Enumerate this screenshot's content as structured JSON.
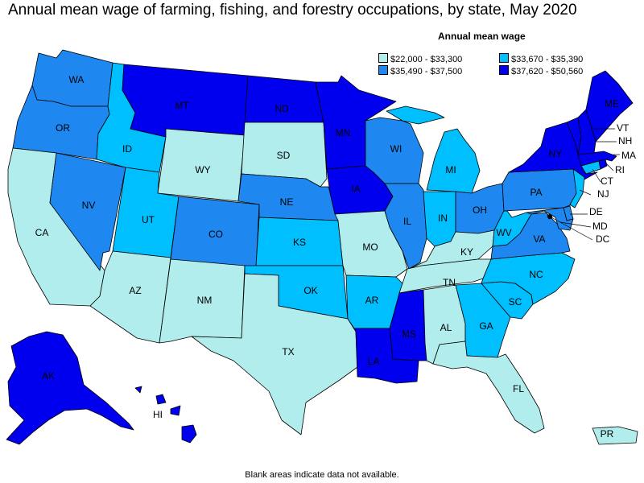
{
  "title": "Annual mean wage of farming, fishing, and forestry occupations, by state, May 2020",
  "legend": {
    "title": "Annual mean wage",
    "items": [
      {
        "label": "$22,000 - $33,300",
        "color": "#b2eded"
      },
      {
        "label": "$33,670 - $35,390",
        "color": "#00bfff"
      },
      {
        "label": "$35,490 - $37,500",
        "color": "#1e88f0"
      },
      {
        "label": "$37,620 - $50,560",
        "color": "#0000ee"
      }
    ]
  },
  "footnote": "Blank areas indicate data not available.",
  "states": [
    {
      "abbr": "WA",
      "bin": 2
    },
    {
      "abbr": "OR",
      "bin": 2
    },
    {
      "abbr": "CA",
      "bin": 0
    },
    {
      "abbr": "NV",
      "bin": 2
    },
    {
      "abbr": "ID",
      "bin": 1
    },
    {
      "abbr": "MT",
      "bin": 3
    },
    {
      "abbr": "WY",
      "bin": 0
    },
    {
      "abbr": "UT",
      "bin": 1
    },
    {
      "abbr": "AZ",
      "bin": 0
    },
    {
      "abbr": "CO",
      "bin": 2
    },
    {
      "abbr": "NM",
      "bin": 0
    },
    {
      "abbr": "ND",
      "bin": 3
    },
    {
      "abbr": "SD",
      "bin": 0
    },
    {
      "abbr": "NE",
      "bin": 2
    },
    {
      "abbr": "KS",
      "bin": 1
    },
    {
      "abbr": "OK",
      "bin": 1
    },
    {
      "abbr": "TX",
      "bin": 0
    },
    {
      "abbr": "MN",
      "bin": 3
    },
    {
      "abbr": "IA",
      "bin": 3
    },
    {
      "abbr": "MO",
      "bin": 0
    },
    {
      "abbr": "AR",
      "bin": 1
    },
    {
      "abbr": "LA",
      "bin": 3
    },
    {
      "abbr": "WI",
      "bin": 2
    },
    {
      "abbr": "IL",
      "bin": 2
    },
    {
      "abbr": "MI",
      "bin": 1
    },
    {
      "abbr": "IN",
      "bin": 1
    },
    {
      "abbr": "OH",
      "bin": 2
    },
    {
      "abbr": "KY",
      "bin": 0
    },
    {
      "abbr": "TN",
      "bin": 0
    },
    {
      "abbr": "MS",
      "bin": 3
    },
    {
      "abbr": "AL",
      "bin": 0
    },
    {
      "abbr": "GA",
      "bin": 1
    },
    {
      "abbr": "FL",
      "bin": 0
    },
    {
      "abbr": "SC",
      "bin": 1
    },
    {
      "abbr": "NC",
      "bin": 1
    },
    {
      "abbr": "VA",
      "bin": 2
    },
    {
      "abbr": "WV",
      "bin": 1
    },
    {
      "abbr": "PA",
      "bin": 2
    },
    {
      "abbr": "NY",
      "bin": 3
    },
    {
      "abbr": "NJ",
      "bin": 1
    },
    {
      "abbr": "DE",
      "bin": 2
    },
    {
      "abbr": "MD",
      "bin": 2
    },
    {
      "abbr": "DC",
      "bin": 2
    },
    {
      "abbr": "CT",
      "bin": 1
    },
    {
      "abbr": "RI",
      "bin": 3
    },
    {
      "abbr": "MA",
      "bin": 3
    },
    {
      "abbr": "VT",
      "bin": 3
    },
    {
      "abbr": "NH",
      "bin": 3
    },
    {
      "abbr": "ME",
      "bin": 3
    },
    {
      "abbr": "AK",
      "bin": 3
    },
    {
      "abbr": "HI",
      "bin": 3
    },
    {
      "abbr": "PR",
      "bin": 0
    }
  ]
}
